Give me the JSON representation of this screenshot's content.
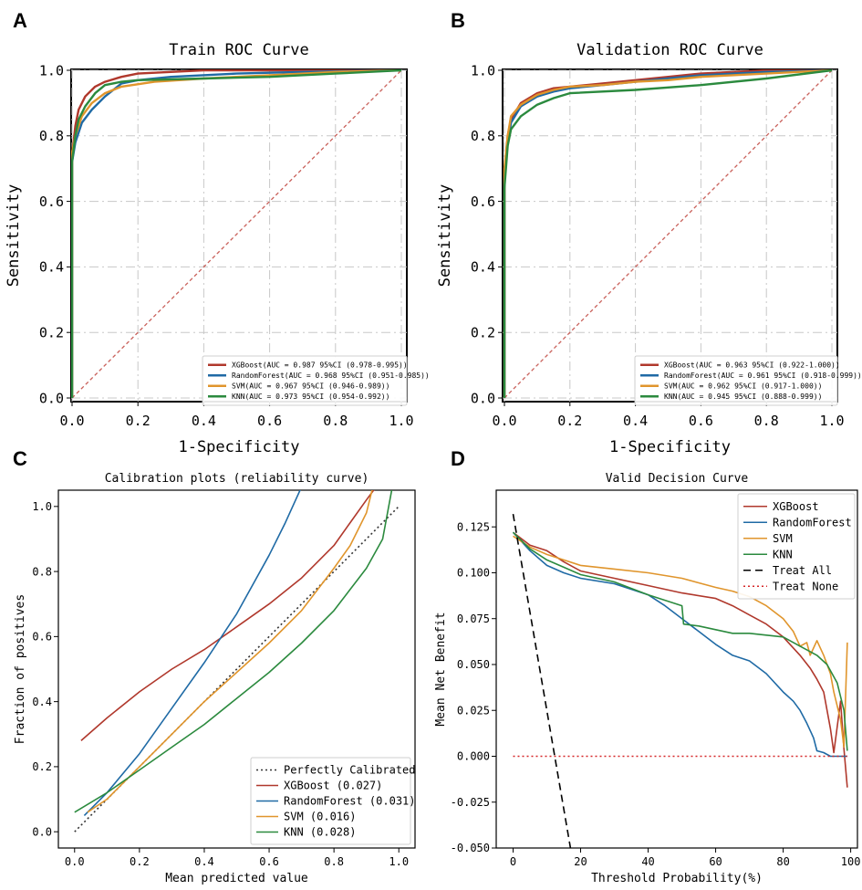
{
  "figure": {
    "panel_labels": [
      "A",
      "B",
      "C",
      "D"
    ]
  },
  "colors": {
    "xgboost": "#b0382c",
    "randomforest": "#1f6aa5",
    "svm": "#e0952c",
    "knn": "#2b8a3e",
    "diagonal": "#c9605a",
    "perfect": "#333333",
    "treat_all": "#000000",
    "treat_none": "#d62728",
    "grid": "#c8c8c8"
  },
  "chart_data": [
    {
      "type": "line",
      "panel": "A",
      "title": "Train ROC Curve",
      "xlabel": "1-Specificity",
      "ylabel": "Sensitivity",
      "xlim": [
        0,
        1
      ],
      "ylim": [
        0,
        1
      ],
      "xticks": [
        0.0,
        0.2,
        0.4,
        0.6,
        0.8,
        1.0
      ],
      "yticks": [
        0.0,
        0.2,
        0.4,
        0.6,
        0.8,
        1.0
      ],
      "tick_labels_x": [
        "0.0",
        "0.2",
        "0.4",
        "0.6",
        "0.8",
        "1.0"
      ],
      "tick_labels_y": [
        "0.0",
        "0.2",
        "0.4",
        "0.6",
        "0.8",
        "1.0"
      ],
      "grid": true,
      "legend_position": "bottom-right",
      "series": [
        {
          "name": "XGBoost",
          "legend": "XGBoost(AUC = 0.987 95%CI (0.978-0.995))",
          "color": "#b0382c",
          "x": [
            0,
            0,
            0.01,
            0.02,
            0.04,
            0.07,
            0.1,
            0.15,
            0.2,
            0.3,
            0.4,
            0.6,
            0.8,
            1.0
          ],
          "y": [
            0,
            0.74,
            0.83,
            0.88,
            0.92,
            0.95,
            0.965,
            0.98,
            0.99,
            0.995,
            1.0,
            1.0,
            1.0,
            1.0
          ]
        },
        {
          "name": "RandomForest",
          "legend": "RandomForest(AUC = 0.968 95%CI (0.951-0.985))",
          "color": "#1f6aa5",
          "x": [
            0,
            0,
            0.01,
            0.03,
            0.06,
            0.1,
            0.15,
            0.2,
            0.3,
            0.5,
            0.7,
            1.0
          ],
          "y": [
            0,
            0.72,
            0.78,
            0.84,
            0.88,
            0.92,
            0.96,
            0.97,
            0.98,
            0.99,
            0.995,
            1.0
          ]
        },
        {
          "name": "SVM",
          "legend": "SVM(AUC = 0.967 95%CI (0.946-0.989))",
          "color": "#e0952c",
          "x": [
            0,
            0,
            0.01,
            0.03,
            0.06,
            0.1,
            0.15,
            0.25,
            0.4,
            0.6,
            0.8,
            1.0
          ],
          "y": [
            0,
            0.75,
            0.8,
            0.86,
            0.9,
            0.93,
            0.95,
            0.965,
            0.975,
            0.985,
            0.995,
            1.0
          ]
        },
        {
          "name": "KNN",
          "legend": "KNN(AUC = 0.973 95%CI (0.954-0.992))",
          "color": "#2b8a3e",
          "x": [
            0,
            0,
            0.01,
            0.02,
            0.04,
            0.07,
            0.1,
            0.15,
            0.2,
            0.4,
            0.6,
            0.8,
            1.0
          ],
          "y": [
            0,
            0.72,
            0.8,
            0.85,
            0.89,
            0.93,
            0.955,
            0.965,
            0.97,
            0.975,
            0.98,
            0.99,
            1.0
          ]
        }
      ]
    },
    {
      "type": "line",
      "panel": "B",
      "title": "Validation ROC Curve",
      "xlabel": "1-Specificity",
      "ylabel": "Sensitivity",
      "xlim": [
        0,
        1
      ],
      "ylim": [
        0,
        1
      ],
      "xticks": [
        0.0,
        0.2,
        0.4,
        0.6,
        0.8,
        1.0
      ],
      "yticks": [
        0.0,
        0.2,
        0.4,
        0.6,
        0.8,
        1.0
      ],
      "tick_labels_x": [
        "0.0",
        "0.2",
        "0.4",
        "0.6",
        "0.8",
        "1.0"
      ],
      "tick_labels_y": [
        "0.0",
        "0.2",
        "0.4",
        "0.6",
        "0.8",
        "1.0"
      ],
      "grid": true,
      "legend_position": "bottom-right",
      "series": [
        {
          "name": "XGBoost",
          "legend": "XGBoost(AUC = 0.963 95%CI (0.922-1.000))",
          "color": "#b0382c",
          "x": [
            0,
            0,
            0.01,
            0.02,
            0.05,
            0.1,
            0.15,
            0.2,
            0.3,
            0.4,
            0.5,
            0.6,
            0.7,
            0.8,
            1.0
          ],
          "y": [
            0,
            0.68,
            0.8,
            0.85,
            0.9,
            0.93,
            0.945,
            0.95,
            0.96,
            0.97,
            0.98,
            0.99,
            0.995,
            1.0,
            1.0
          ]
        },
        {
          "name": "RandomForest",
          "legend": "RandomForest(AUC = 0.961 95%CI (0.918-0.999))",
          "color": "#1f6aa5",
          "x": [
            0,
            0,
            0.01,
            0.02,
            0.05,
            0.1,
            0.15,
            0.2,
            0.3,
            0.4,
            0.5,
            0.6,
            0.8,
            1.0
          ],
          "y": [
            0,
            0.67,
            0.78,
            0.84,
            0.89,
            0.92,
            0.935,
            0.945,
            0.955,
            0.965,
            0.975,
            0.985,
            0.995,
            1.0
          ]
        },
        {
          "name": "SVM",
          "legend": "SVM(AUC = 0.962 95%CI (0.917-1.000))",
          "color": "#e0952c",
          "x": [
            0,
            0,
            0.01,
            0.02,
            0.05,
            0.1,
            0.15,
            0.2,
            0.3,
            0.4,
            0.5,
            0.6,
            0.8,
            1.0
          ],
          "y": [
            0,
            0.7,
            0.8,
            0.86,
            0.895,
            0.925,
            0.94,
            0.95,
            0.955,
            0.965,
            0.97,
            0.98,
            0.99,
            1.0
          ]
        },
        {
          "name": "KNN",
          "legend": "KNN(AUC = 0.945 95%CI (0.888-0.999))",
          "color": "#2b8a3e",
          "x": [
            0,
            0,
            0.01,
            0.02,
            0.05,
            0.1,
            0.15,
            0.2,
            0.4,
            0.6,
            0.8,
            1.0
          ],
          "y": [
            0,
            0.64,
            0.77,
            0.82,
            0.86,
            0.895,
            0.915,
            0.93,
            0.94,
            0.955,
            0.975,
            1.0
          ]
        }
      ]
    },
    {
      "type": "line",
      "panel": "C",
      "title": "Calibration plots  (reliability curve)",
      "xlabel": "Mean predicted value",
      "ylabel": "Fraction of positives",
      "xlim": [
        -0.05,
        1.05
      ],
      "ylim": [
        -0.05,
        1.05
      ],
      "xticks": [
        0.0,
        0.2,
        0.4,
        0.6,
        0.8,
        1.0
      ],
      "yticks": [
        0.0,
        0.2,
        0.4,
        0.6,
        0.8,
        1.0
      ],
      "tick_labels_x": [
        "0.0",
        "0.2",
        "0.4",
        "0.6",
        "0.8",
        "1.0"
      ],
      "tick_labels_y": [
        "0.0",
        "0.2",
        "0.4",
        "0.6",
        "0.8",
        "1.0"
      ],
      "grid": false,
      "legend_position": "bottom-right",
      "series": [
        {
          "name": "Perfectly Calibrated",
          "legend": "Perfectly Calibrated",
          "color": "#333333",
          "dash": "2,3",
          "x": [
            0.0,
            1.0
          ],
          "y": [
            0.0,
            1.0
          ]
        },
        {
          "name": "XGBoost",
          "legend": "XGBoost (0.027)",
          "color": "#b0382c",
          "x": [
            0.02,
            0.1,
            0.2,
            0.3,
            0.4,
            0.5,
            0.6,
            0.7,
            0.8,
            0.85,
            0.9,
            0.93
          ],
          "y": [
            0.28,
            0.35,
            0.43,
            0.5,
            0.56,
            0.63,
            0.7,
            0.78,
            0.88,
            0.95,
            1.02,
            1.06
          ]
        },
        {
          "name": "RandomForest",
          "legend": "RandomForest (0.031)",
          "color": "#1f6aa5",
          "x": [
            0.03,
            0.1,
            0.2,
            0.3,
            0.4,
            0.5,
            0.6,
            0.65,
            0.7
          ],
          "y": [
            0.05,
            0.12,
            0.24,
            0.38,
            0.52,
            0.67,
            0.85,
            0.95,
            1.06
          ]
        },
        {
          "name": "SVM",
          "legend": "SVM (0.016)",
          "color": "#e0952c",
          "x": [
            0.04,
            0.1,
            0.2,
            0.3,
            0.4,
            0.5,
            0.6,
            0.7,
            0.8,
            0.85,
            0.9,
            0.92
          ],
          "y": [
            0.06,
            0.1,
            0.2,
            0.3,
            0.4,
            0.49,
            0.58,
            0.68,
            0.81,
            0.88,
            0.98,
            1.06
          ]
        },
        {
          "name": "KNN",
          "legend": "KNN (0.028)",
          "color": "#2b8a3e",
          "x": [
            0.0,
            0.1,
            0.2,
            0.3,
            0.4,
            0.5,
            0.6,
            0.7,
            0.8,
            0.9,
            0.95,
            0.98
          ],
          "y": [
            0.06,
            0.12,
            0.19,
            0.26,
            0.33,
            0.41,
            0.49,
            0.58,
            0.68,
            0.81,
            0.9,
            1.06
          ]
        }
      ]
    },
    {
      "type": "line",
      "panel": "D",
      "title": "Valid Decision Curve",
      "xlabel": "Threshold Probability(%)",
      "ylabel": "Mean Net Benefit",
      "xlim": [
        -5,
        102
      ],
      "ylim": [
        -0.05,
        0.145
      ],
      "xticks": [
        0,
        20,
        40,
        60,
        80,
        100
      ],
      "yticks": [
        -0.05,
        -0.025,
        0.0,
        0.025,
        0.05,
        0.075,
        0.1,
        0.125
      ],
      "tick_labels_x": [
        "0",
        "20",
        "40",
        "60",
        "80",
        "100"
      ],
      "tick_labels_y": [
        "-0.050",
        "-0.025",
        "0.000",
        "0.025",
        "0.050",
        "0.075",
        "0.100",
        "0.125"
      ],
      "grid": false,
      "legend_position": "top-right",
      "series": [
        {
          "name": "XGBoost",
          "legend": "XGBoost",
          "color": "#b0382c",
          "x": [
            0,
            5,
            10,
            15,
            20,
            30,
            40,
            50,
            60,
            65,
            70,
            75,
            80,
            85,
            88,
            90,
            92,
            94,
            95,
            97,
            98,
            99
          ],
          "y": [
            0.122,
            0.115,
            0.112,
            0.106,
            0.101,
            0.097,
            0.093,
            0.089,
            0.086,
            0.082,
            0.077,
            0.072,
            0.065,
            0.055,
            0.048,
            0.042,
            0.035,
            0.015,
            0.002,
            0.03,
            0.004,
            -0.017
          ]
        },
        {
          "name": "RandomForest",
          "legend": "RandomForest",
          "color": "#1f6aa5",
          "x": [
            0,
            5,
            10,
            15,
            20,
            30,
            40,
            45,
            50,
            55,
            60,
            65,
            70,
            75,
            80,
            83,
            85,
            87,
            89,
            90,
            92,
            94,
            97,
            99
          ],
          "y": [
            0.122,
            0.112,
            0.104,
            0.1,
            0.097,
            0.094,
            0.088,
            0.082,
            0.075,
            0.068,
            0.061,
            0.055,
            0.052,
            0.045,
            0.035,
            0.03,
            0.025,
            0.018,
            0.01,
            0.003,
            0.002,
            0.0,
            0.0,
            0.0
          ]
        },
        {
          "name": "SVM",
          "legend": "SVM",
          "color": "#e0952c",
          "x": [
            0,
            5,
            10,
            15,
            20,
            30,
            40,
            50,
            60,
            65,
            70,
            75,
            80,
            83,
            85,
            87,
            88,
            90,
            92,
            94,
            95,
            97,
            98,
            99
          ],
          "y": [
            0.12,
            0.114,
            0.11,
            0.107,
            0.104,
            0.102,
            0.1,
            0.097,
            0.092,
            0.09,
            0.087,
            0.082,
            0.075,
            0.068,
            0.06,
            0.062,
            0.055,
            0.063,
            0.055,
            0.045,
            0.035,
            0.02,
            0.005,
            0.062
          ]
        },
        {
          "name": "KNN",
          "legend": "KNN",
          "color": "#2b8a3e",
          "x": [
            0,
            5,
            10,
            15,
            20,
            30,
            40,
            50,
            50.5,
            55,
            60,
            65,
            70,
            75,
            80,
            85,
            90,
            93,
            96,
            98,
            99
          ],
          "y": [
            0.122,
            0.113,
            0.107,
            0.103,
            0.099,
            0.095,
            0.088,
            0.082,
            0.072,
            0.071,
            0.069,
            0.067,
            0.067,
            0.066,
            0.065,
            0.06,
            0.055,
            0.05,
            0.04,
            0.025,
            0.003
          ]
        },
        {
          "name": "Treat All",
          "legend": "Treat All",
          "color": "#000000",
          "dash": "8,5",
          "x": [
            0,
            17
          ],
          "y": [
            0.132,
            -0.05
          ]
        },
        {
          "name": "Treat None",
          "legend": "Treat None",
          "color": "#d62728",
          "dash": "2,3",
          "x": [
            0,
            99
          ],
          "y": [
            0.0,
            0.0
          ]
        }
      ]
    }
  ]
}
